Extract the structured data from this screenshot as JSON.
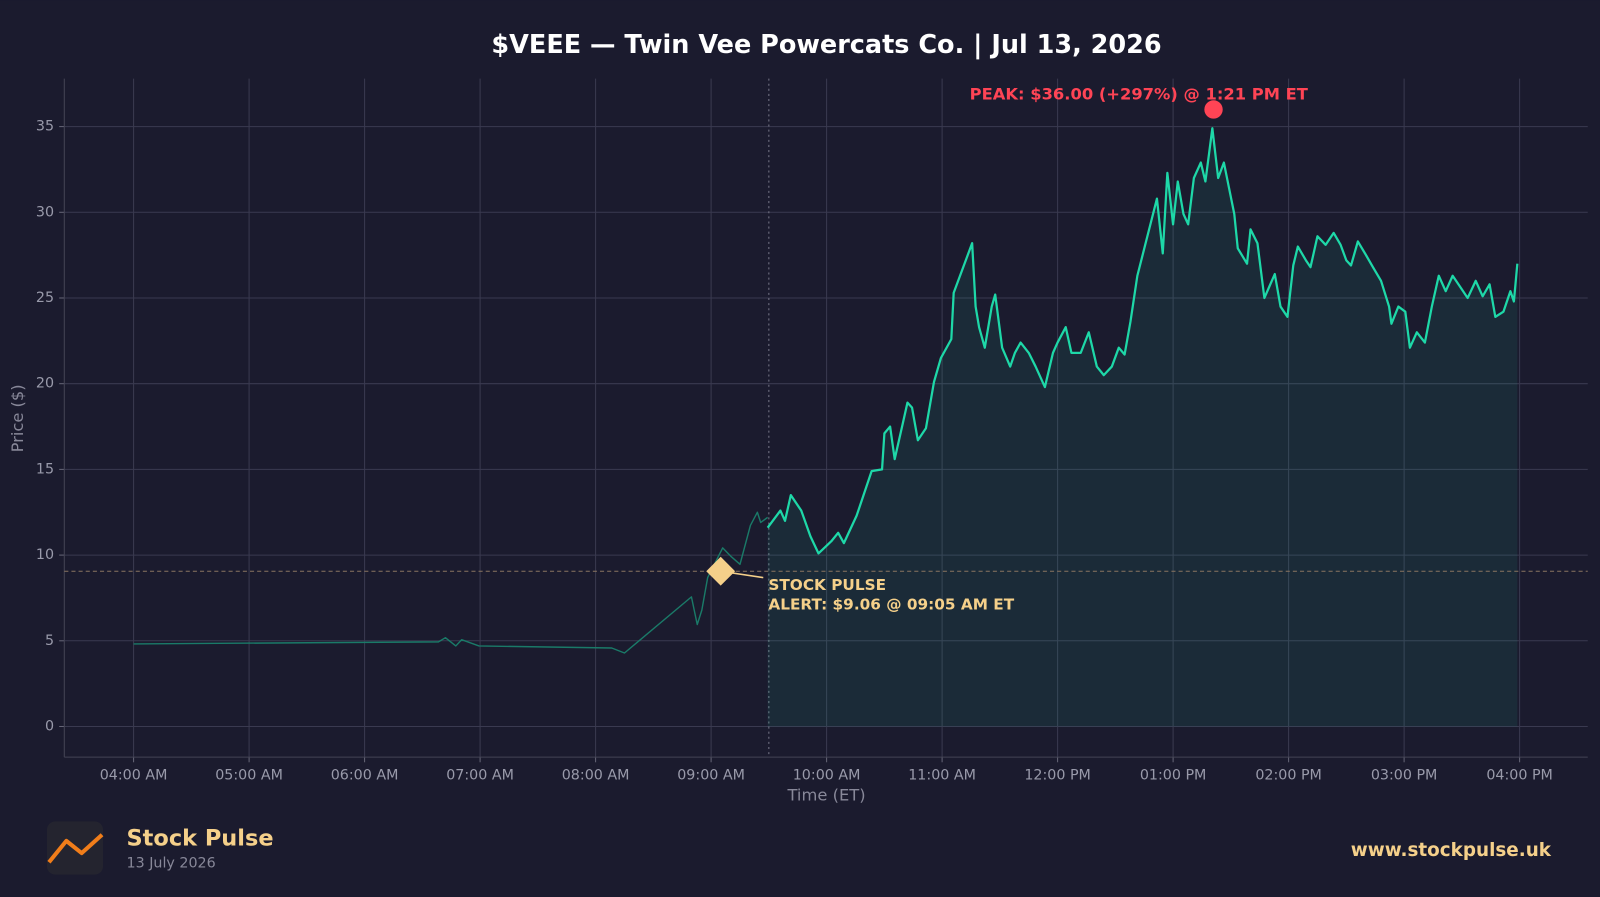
{
  "chart_data": {
    "type": "line",
    "title": "$VEEE — Twin Vee Powercats Co.  |  Jul 13, 2026",
    "xlabel": "Time (ET)",
    "ylabel": "Price ($)",
    "xlim": [
      3.4,
      16.59
    ],
    "ylim": [
      -1.79,
      37.8
    ],
    "xticks": [
      {
        "value": 4,
        "label": "04:00 AM"
      },
      {
        "value": 5,
        "label": "05:00 AM"
      },
      {
        "value": 6,
        "label": "06:00 AM"
      },
      {
        "value": 7,
        "label": "07:00 AM"
      },
      {
        "value": 8,
        "label": "08:00 AM"
      },
      {
        "value": 9,
        "label": "09:00 AM"
      },
      {
        "value": 10,
        "label": "10:00 AM"
      },
      {
        "value": 11,
        "label": "11:00 AM"
      },
      {
        "value": 12,
        "label": "12:00 PM"
      },
      {
        "value": 13,
        "label": "01:00 PM"
      },
      {
        "value": 14,
        "label": "02:00 PM"
      },
      {
        "value": 15,
        "label": "03:00 PM"
      },
      {
        "value": 16,
        "label": "04:00 PM"
      }
    ],
    "yticks": [
      0,
      5,
      10,
      15,
      20,
      25,
      30,
      35
    ],
    "grid": true,
    "market_open": 9.5,
    "series": [
      {
        "color": "#1a7a68",
        "fill": false,
        "x": [
          4.0,
          6.64,
          6.7,
          6.79,
          6.84,
          6.99,
          8.14,
          8.25,
          8.83,
          8.88,
          8.92,
          8.97,
          9.1,
          9.17,
          9.25,
          9.34,
          9.4,
          9.43,
          9.49
        ],
        "values": [
          4.82,
          4.94,
          5.18,
          4.7,
          5.06,
          4.7,
          4.58,
          4.29,
          7.56,
          5.95,
          6.79,
          8.69,
          10.42,
          9.94,
          9.46,
          11.73,
          12.5,
          11.9,
          12.2
        ]
      },
      {
        "color": "#1ed8a8",
        "fill": true,
        "x": [
          9.49,
          9.6,
          9.64,
          9.69,
          9.78,
          9.86,
          9.93,
          10.04,
          10.1,
          10.15,
          10.26,
          10.39,
          10.48,
          10.5,
          10.55,
          10.59,
          10.66,
          10.7,
          10.74,
          10.79,
          10.86,
          10.93,
          10.99,
          11.08,
          11.1,
          11.26,
          11.29,
          11.32,
          11.37,
          11.43,
          11.46,
          11.52,
          11.59,
          11.63,
          11.68,
          11.75,
          11.81,
          11.89,
          11.96,
          12.0,
          12.07,
          12.12,
          12.2,
          12.27,
          12.34,
          12.4,
          12.47,
          12.53,
          12.58,
          12.63,
          12.69,
          12.86,
          12.91,
          12.95,
          13.0,
          13.04,
          13.09,
          13.13,
          13.18,
          13.24,
          13.28,
          13.34,
          13.39,
          13.44,
          13.53,
          13.56,
          13.64,
          13.67,
          13.73,
          13.79,
          13.88,
          13.93,
          13.99,
          14.04,
          14.08,
          14.15,
          14.19,
          14.25,
          14.32,
          14.39,
          14.45,
          14.5,
          14.54,
          14.6,
          14.67,
          14.73,
          14.8,
          14.87,
          14.89,
          14.95,
          15.01,
          15.05,
          15.11,
          15.18,
          15.24,
          15.3,
          15.36,
          15.42,
          15.48,
          15.55,
          15.62,
          15.68,
          15.74,
          15.79,
          15.86,
          15.92,
          15.95,
          15.98
        ],
        "values": [
          11.6,
          12.6,
          12.0,
          13.5,
          12.6,
          11.1,
          10.1,
          10.8,
          11.3,
          10.7,
          12.3,
          14.9,
          15.0,
          17.1,
          17.5,
          15.6,
          17.7,
          18.9,
          18.6,
          16.7,
          17.4,
          20.1,
          21.5,
          22.6,
          25.3,
          28.2,
          24.5,
          23.3,
          22.1,
          24.5,
          25.2,
          22.1,
          21.0,
          21.8,
          22.4,
          21.8,
          21.0,
          19.8,
          21.8,
          22.4,
          23.3,
          21.8,
          21.8,
          23.0,
          21.0,
          20.5,
          21.0,
          22.1,
          21.7,
          23.6,
          26.3,
          30.8,
          27.6,
          32.3,
          29.3,
          31.8,
          29.9,
          29.3,
          32.0,
          32.9,
          31.8,
          34.9,
          32.0,
          32.9,
          29.9,
          27.9,
          27.0,
          29.0,
          28.2,
          25.0,
          26.4,
          24.5,
          23.9,
          26.9,
          28.0,
          27.2,
          26.8,
          28.6,
          28.1,
          28.8,
          28.1,
          27.2,
          26.9,
          28.3,
          27.5,
          26.8,
          26.0,
          24.5,
          23.5,
          24.5,
          24.2,
          22.1,
          23.0,
          22.4,
          24.5,
          26.3,
          25.4,
          26.3,
          25.7,
          25.0,
          26.0,
          25.1,
          25.8,
          23.9,
          24.2,
          25.4,
          24.8,
          27.0
        ]
      }
    ],
    "annotations": {
      "peak": {
        "x": 13.35,
        "y": 36.0,
        "label": "PEAK: $36.00 (+297%) @ 1:21 PM ET",
        "color": "#ff4455"
      },
      "alert": {
        "x": 9.083,
        "y": 9.06,
        "label": [
          "STOCK PULSE",
          "ALERT: $9.06 @ 09:05 AM ET"
        ],
        "color": "#f5d08a"
      }
    }
  },
  "footer": {
    "brand": "Stock Pulse",
    "date": "13 July 2026",
    "url": "www.stockpulse.uk"
  }
}
